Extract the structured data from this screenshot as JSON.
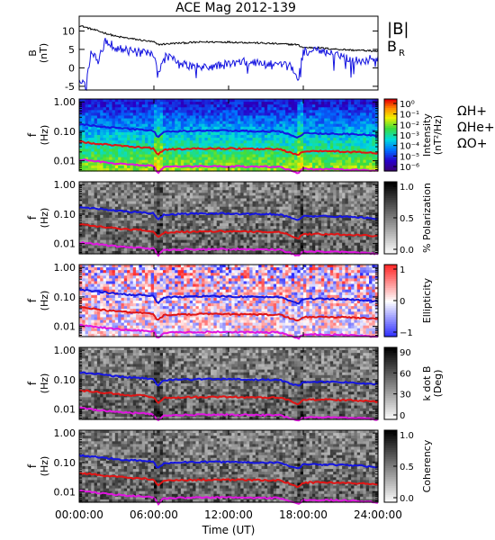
{
  "chart_data": [
    {
      "type": "line",
      "title": "ACE Mag 2012-139",
      "ylabel": [
        "B",
        "(nT)"
      ],
      "ylim": [
        -6,
        14
      ],
      "yticks": [
        -5,
        0,
        5,
        10
      ],
      "xlim_hours": [
        0,
        24
      ],
      "legend": [
        "|B|",
        "B",
        "R"
      ],
      "series": [
        {
          "name": "|B|",
          "color": "#000000",
          "x": [
            0,
            1,
            2,
            3,
            4,
            5,
            6,
            6.3,
            7,
            8,
            10,
            12,
            14,
            16,
            17.5,
            18,
            19,
            20,
            21,
            22,
            23,
            24
          ],
          "values": [
            11.5,
            10.5,
            9.5,
            8.5,
            8,
            7.5,
            7,
            6.3,
            6.5,
            6.7,
            7,
            7,
            6.8,
            6.5,
            6.3,
            5.5,
            5.5,
            5.2,
            5,
            4.8,
            4.7,
            4.5
          ]
        },
        {
          "name": "B_R",
          "color": "#1515e0",
          "x": [
            0,
            0.5,
            1,
            1.5,
            2,
            3,
            4,
            5,
            6,
            6.3,
            7,
            8,
            9,
            10,
            11,
            12,
            13,
            14,
            15,
            16,
            17,
            17.6,
            18,
            19,
            20,
            21,
            22,
            23,
            24
          ],
          "values": [
            -4,
            -4,
            5,
            2,
            7.5,
            5.5,
            4.5,
            4,
            3.5,
            -2,
            3.5,
            1,
            0.5,
            0,
            0.5,
            1,
            1.5,
            1.5,
            1,
            0.5,
            0.5,
            -3,
            4.5,
            4.5,
            4,
            3.5,
            2,
            2,
            3
          ]
        }
      ]
    },
    {
      "type": "heatmap",
      "ylabel": [
        "f",
        "(Hz)"
      ],
      "yticks": [
        "1.00",
        "0.10",
        "0.01"
      ],
      "colorbar_label": [
        "Intensity",
        "(nT²/Hz)"
      ],
      "colorbar_ticks": [
        "10⁰",
        "10⁻¹",
        "10⁻²",
        "10⁻³",
        "10⁻⁴",
        "10⁻⁵",
        "10⁻⁶"
      ],
      "colormap": "rainbow",
      "legend": [
        {
          "label": "ΩH+",
          "color": "#1515e0"
        },
        {
          "label": "ΩHe+",
          "color": "#e01515"
        },
        {
          "label": "ΩO+",
          "color": "#e015e0"
        }
      ]
    },
    {
      "type": "heatmap",
      "ylabel": [
        "f",
        "(Hz)"
      ],
      "yticks": [
        "1.00",
        "0.10",
        "0.01"
      ],
      "colorbar_label": [
        "% Polarization"
      ],
      "colorbar_ticks": [
        "1.0",
        "0.5",
        "0.0"
      ],
      "colormap": "gray"
    },
    {
      "type": "heatmap",
      "ylabel": [
        "f",
        "(Hz)"
      ],
      "yticks": [
        "1.00",
        "0.10",
        "0.01"
      ],
      "colorbar_label": [
        "Ellipticity"
      ],
      "colorbar_ticks": [
        "1",
        "0",
        "−1"
      ],
      "colormap": "blue-white-red"
    },
    {
      "type": "heatmap",
      "ylabel": [
        "f",
        "(Hz)"
      ],
      "yticks": [
        "1.00",
        "0.10",
        "0.01"
      ],
      "colorbar_label": [
        "k dot B",
        "(Deg)"
      ],
      "colorbar_ticks": [
        "90",
        "60",
        "30",
        "0"
      ],
      "colormap": "gray"
    },
    {
      "type": "heatmap",
      "ylabel": [
        "f",
        "(Hz)"
      ],
      "yticks": [
        "1.00",
        "0.10",
        "0.01"
      ],
      "colorbar_label": [
        "Coherency"
      ],
      "colorbar_ticks": [
        "1.0",
        "0.5",
        "0.0"
      ],
      "colormap": "gray",
      "xlabel": "Time (UT)",
      "xticks": [
        "00:00:00",
        "06:00:00",
        "12:00:00",
        "18:00:00",
        "24:00:00"
      ]
    }
  ],
  "gyro_lines": {
    "x": [
      0,
      1,
      2,
      3,
      4,
      5,
      6,
      6.3,
      6.8,
      8,
      10,
      12,
      14,
      16,
      17.6,
      18,
      20,
      22,
      24
    ],
    "H_plus": [
      0.175,
      0.16,
      0.145,
      0.13,
      0.12,
      0.115,
      0.105,
      0.06,
      0.095,
      0.1,
      0.105,
      0.105,
      0.1,
      0.1,
      0.06,
      0.085,
      0.085,
      0.08,
      0.07
    ],
    "He_plus": [
      0.044,
      0.04,
      0.036,
      0.033,
      0.03,
      0.029,
      0.026,
      0.015,
      0.024,
      0.025,
      0.026,
      0.026,
      0.025,
      0.025,
      0.015,
      0.021,
      0.021,
      0.02,
      0.018
    ],
    "O_plus": [
      0.011,
      0.01,
      0.009,
      0.008,
      0.0075,
      0.0072,
      0.0066,
      0.0038,
      0.006,
      0.0063,
      0.0065,
      0.0065,
      0.0063,
      0.0063,
      0.0038,
      0.0053,
      0.0053,
      0.005,
      0.0045
    ]
  }
}
